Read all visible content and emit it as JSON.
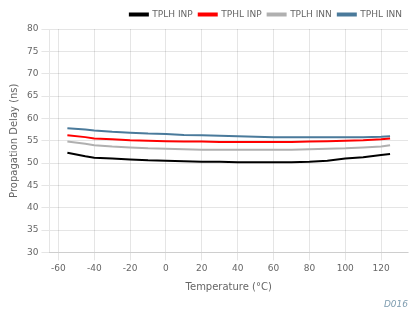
{
  "chart_data": {
    "type": "line",
    "xlabel": "Temperature (°C)",
    "ylabel": "Propagation Delay (ns)",
    "annotation": "D016",
    "annotation_color": "#7f9db0",
    "xlim": [
      -65,
      135
    ],
    "ylim": [
      30,
      80
    ],
    "xticks": [
      -60,
      -40,
      -20,
      0,
      20,
      40,
      60,
      80,
      100,
      120
    ],
    "yticks": [
      30,
      35,
      40,
      45,
      50,
      55,
      60,
      65,
      70,
      75,
      80
    ],
    "grid": true,
    "legend": "upper right",
    "x": [
      -55,
      -45,
      -40,
      -30,
      -20,
      -10,
      0,
      10,
      20,
      30,
      40,
      50,
      60,
      70,
      80,
      90,
      100,
      110,
      120,
      125
    ],
    "series": [
      {
        "name": "TPLH INP",
        "color": "#000000",
        "values": [
          52.3,
          51.5,
          51.2,
          51.0,
          50.8,
          50.6,
          50.5,
          50.4,
          50.3,
          50.3,
          50.2,
          50.2,
          50.2,
          50.2,
          50.3,
          50.5,
          51.0,
          51.3,
          51.8,
          52.0
        ]
      },
      {
        "name": "TPHL INP",
        "color": "#ff0000",
        "values": [
          56.2,
          55.8,
          55.5,
          55.3,
          55.1,
          55.0,
          54.9,
          54.8,
          54.8,
          54.7,
          54.7,
          54.7,
          54.7,
          54.7,
          54.8,
          54.9,
          55.0,
          55.1,
          55.3,
          55.5
        ]
      },
      {
        "name": "TPLH INN",
        "color": "#b0b0b0",
        "values": [
          54.8,
          54.3,
          54.0,
          53.7,
          53.5,
          53.3,
          53.2,
          53.1,
          53.0,
          53.0,
          53.0,
          53.0,
          53.0,
          53.0,
          53.1,
          53.2,
          53.3,
          53.5,
          53.7,
          54.0
        ]
      },
      {
        "name": "TPHL INN",
        "color": "#4a7a9b",
        "values": [
          57.8,
          57.5,
          57.3,
          57.0,
          56.8,
          56.6,
          56.5,
          56.3,
          56.2,
          56.1,
          56.0,
          55.9,
          55.8,
          55.8,
          55.8,
          55.8,
          55.8,
          55.8,
          55.9,
          56.0
        ]
      }
    ]
  }
}
